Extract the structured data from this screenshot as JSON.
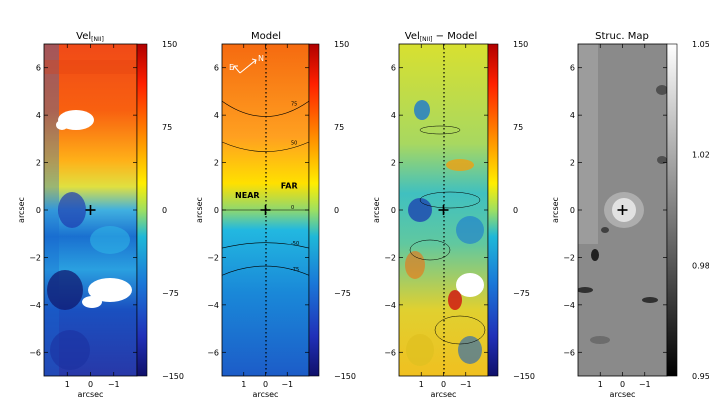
{
  "chart_data": [
    {
      "type": "heatmap",
      "title": "Vel",
      "title_sub": "[NII]",
      "xlabel": "arcsec",
      "ylabel": "arcsec",
      "xlim": [
        2,
        -2
      ],
      "ylim": [
        -7,
        7
      ],
      "xticks": [
        1,
        0,
        -1
      ],
      "xtick_labels": [
        "1",
        "0",
        "−1"
      ],
      "yticks": [
        -6,
        -4,
        -2,
        0,
        2,
        4,
        6
      ],
      "ytick_labels": [
        "−6",
        "−4",
        "−2",
        "0",
        "2",
        "4",
        "6"
      ],
      "colorbar": {
        "range": [
          -150,
          150
        ],
        "ticks": [
          "150",
          "75",
          "0",
          "−75",
          "−150"
        ],
        "colormap": "jet"
      },
      "field": {
        "description_values": "line-of-sight velocity km/s",
        "rows_y": [
          6.5,
          5,
          3.5,
          2,
          1,
          0,
          -1,
          -2,
          -3.5,
          -5,
          -6.5
        ],
        "values_by_row": [
          70,
          80,
          75,
          70,
          40,
          -10,
          -60,
          -80,
          -100,
          -110,
          -120
        ]
      },
      "marker": {
        "x": 0,
        "y": 0,
        "symbol": "+"
      },
      "labels": []
    },
    {
      "type": "heatmap",
      "title": "Model",
      "title_sub": "",
      "xlabel": "arcsec",
      "ylabel": "arcsec",
      "xlim": [
        2,
        -2
      ],
      "ylim": [
        -7,
        7
      ],
      "xticks": [
        1,
        0,
        -1
      ],
      "xtick_labels": [
        "1",
        "0",
        "−1"
      ],
      "yticks": [
        -6,
        -4,
        -2,
        0,
        2,
        4,
        6
      ],
      "ytick_labels": [
        "−6",
        "−4",
        "−2",
        "0",
        "2",
        "4",
        "6"
      ],
      "colorbar": {
        "range": [
          -150,
          150
        ],
        "ticks": [
          "150",
          "75",
          "0",
          "−75",
          "−150"
        ],
        "colormap": "jet"
      },
      "contours": [
        {
          "label": "75",
          "y_center": 4.0
        },
        {
          "label": "50",
          "y_center": 2.5
        },
        {
          "label": "0",
          "y_center": 0.0
        },
        {
          "label": "-50",
          "y_center": -1.4
        },
        {
          "label": "-75",
          "y_center": -2.4
        }
      ],
      "compass": {
        "n_label": "N",
        "e_label": "E"
      },
      "marker": {
        "x": 0,
        "y": 0,
        "symbol": "+"
      },
      "labels": [
        {
          "text": "NEAR",
          "x": 1.4,
          "y": 0.5
        },
        {
          "text": "FAR",
          "x": -0.7,
          "y": 0.9
        }
      ]
    },
    {
      "type": "heatmap",
      "title": "Vel",
      "title_sub": "[NII]",
      "title_suffix": " − Model",
      "xlabel": "arcsec",
      "ylabel": "arcsec",
      "xlim": [
        2,
        -2
      ],
      "ylim": [
        -7,
        7
      ],
      "xticks": [
        1,
        0,
        -1
      ],
      "xtick_labels": [
        "1",
        "0",
        "−1"
      ],
      "yticks": [
        -6,
        -4,
        -2,
        0,
        2,
        4,
        6
      ],
      "ytick_labels": [
        "−6",
        "−4",
        "−2",
        "0",
        "2",
        "4",
        "6"
      ],
      "colorbar": {
        "range": [
          -150,
          150
        ],
        "ticks": [
          "150",
          "75",
          "0",
          "−75",
          "−150"
        ],
        "colormap": "jet"
      },
      "marker": {
        "x": 0,
        "y": 0,
        "symbol": "+"
      },
      "labels": []
    },
    {
      "type": "heatmap",
      "title": "Struc. Map",
      "title_sub": "",
      "xlabel": "arcsec",
      "ylabel": "arcsec",
      "xlim": [
        2,
        -2
      ],
      "ylim": [
        -7,
        7
      ],
      "xticks": [
        1,
        0,
        -1
      ],
      "xtick_labels": [
        "1",
        "0",
        "−1"
      ],
      "yticks": [
        -6,
        -4,
        -2,
        0,
        2,
        4,
        6
      ],
      "ytick_labels": [
        "−6",
        "−4",
        "−2",
        "0",
        "2",
        "4",
        "6"
      ],
      "colorbar": {
        "range": [
          0.95,
          1.05
        ],
        "ticks": [
          "1.05",
          "1.02",
          "0.98",
          "0.95"
        ],
        "colormap": "gray"
      },
      "marker": {
        "x": 0,
        "y": 0,
        "symbol": "+"
      },
      "labels": []
    }
  ]
}
